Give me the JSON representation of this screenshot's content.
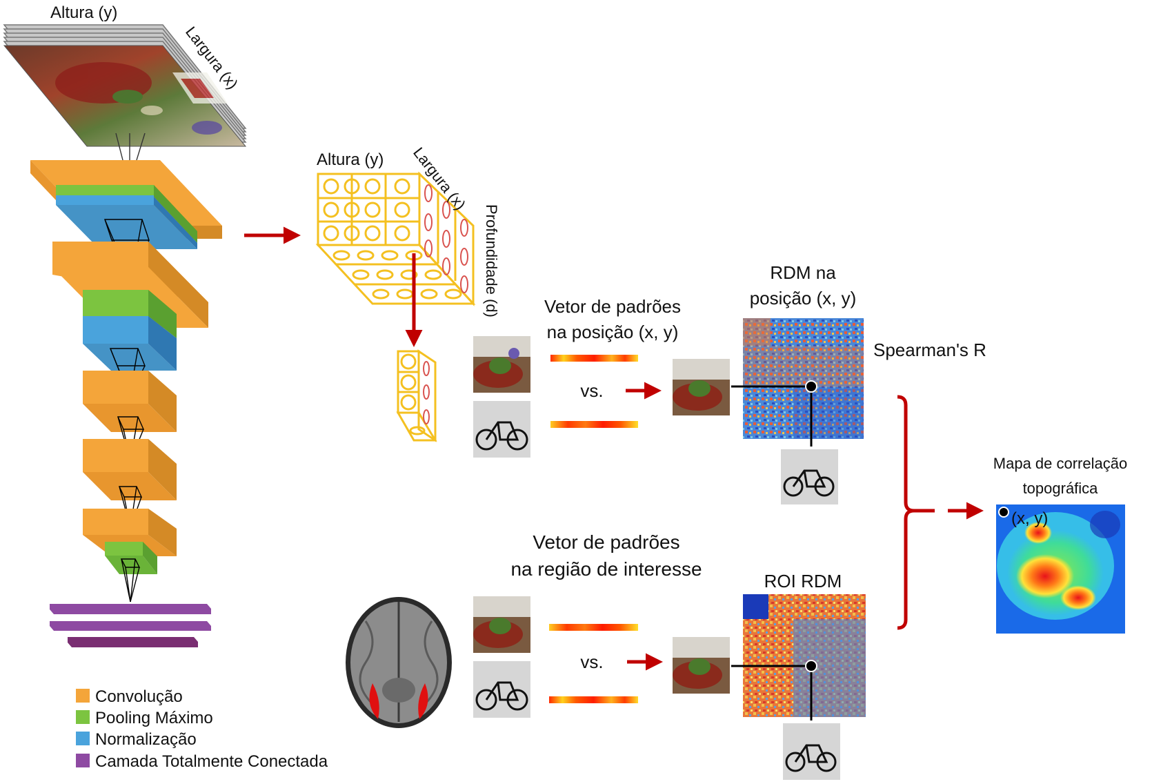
{
  "input_image": {
    "height_label": "Altura (y)",
    "width_label": "Largura (x)"
  },
  "feature_map": {
    "height_label": "Altura (y)",
    "width_label": "Largura (x)",
    "depth_label": "Profundidade (d)"
  },
  "position_vector": {
    "title_line1": "Vetor de padrões",
    "title_line2": "na posição (x, y)",
    "vs_label": "vs."
  },
  "rdm_position": {
    "title_line1": "RDM na",
    "title_line2": "posição (x, y)",
    "stat_label": "Spearman's R"
  },
  "roi_vector": {
    "title_line1": "Vetor de padrões",
    "title_line2": "na região de interesse",
    "vs_label": "vs."
  },
  "roi_rdm": {
    "title": "ROI RDM"
  },
  "topo_map": {
    "title_line1": "Mapa de correlação",
    "title_line2": "topográfica",
    "point_label": "(x, y)"
  },
  "legend": {
    "items": [
      {
        "label": "Convolução",
        "color": "#f4a53a"
      },
      {
        "label": "Pooling Máximo",
        "color": "#7cc440"
      },
      {
        "label": "Normalização",
        "color": "#4aa3dc"
      },
      {
        "label": "Camada Totalmente Conectada",
        "color": "#8e4aa2"
      }
    ]
  },
  "colors": {
    "conv": "#f4a53a",
    "pool": "#7cc440",
    "norm": "#4aa3dc",
    "fc": "#8e4aa2",
    "arrow": "#c00000",
    "grid": "#f4c020"
  },
  "icons": [
    "scene-photo-icon",
    "bicycle-photo-icon",
    "brain-scan-icon"
  ]
}
